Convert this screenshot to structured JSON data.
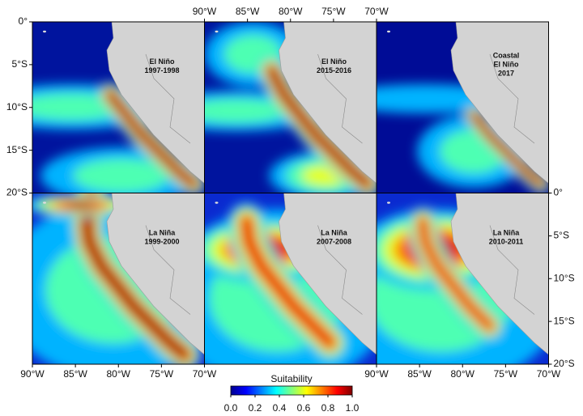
{
  "axes": {
    "left": [
      "0°",
      "5°S",
      "10°S",
      "15°S",
      "20°S"
    ],
    "top": [
      "90°W",
      "85°W",
      "80°W",
      "75°W",
      "70°W"
    ],
    "right": [
      "0°",
      "5°S",
      "10°S",
      "15°S",
      "20°S"
    ],
    "bottom_left": [
      "90°W",
      "85°W",
      "80°W",
      "75°W",
      "70°W"
    ],
    "bottom_right": [
      "90°W",
      "85°W",
      "80°W",
      "75°W",
      "70°W"
    ]
  },
  "panels": [
    {
      "lines": [
        "El Niño",
        "1997-1998"
      ]
    },
    {
      "lines": [
        "El Niño",
        "2015-2016"
      ]
    },
    {
      "lines": [
        "Coastal",
        "El Niño",
        "2017"
      ]
    },
    {
      "lines": [
        "La Niña",
        "1999-2000"
      ]
    },
    {
      "lines": [
        "La Niña",
        "2007-2008"
      ]
    },
    {
      "lines": [
        "La Niña",
        "2010-2011"
      ]
    }
  ],
  "legend": {
    "title": "Suitability",
    "range": [
      0,
      1
    ],
    "ticks": [
      {
        "value": 0,
        "label": "0.0"
      },
      {
        "value": 0.2,
        "label": "0.2"
      },
      {
        "value": 0.4,
        "label": "0.4"
      },
      {
        "value": 0.6,
        "label": "0.6"
      },
      {
        "value": 0.8,
        "label": "0.8"
      },
      {
        "value": 1,
        "label": "1.0"
      }
    ]
  }
}
